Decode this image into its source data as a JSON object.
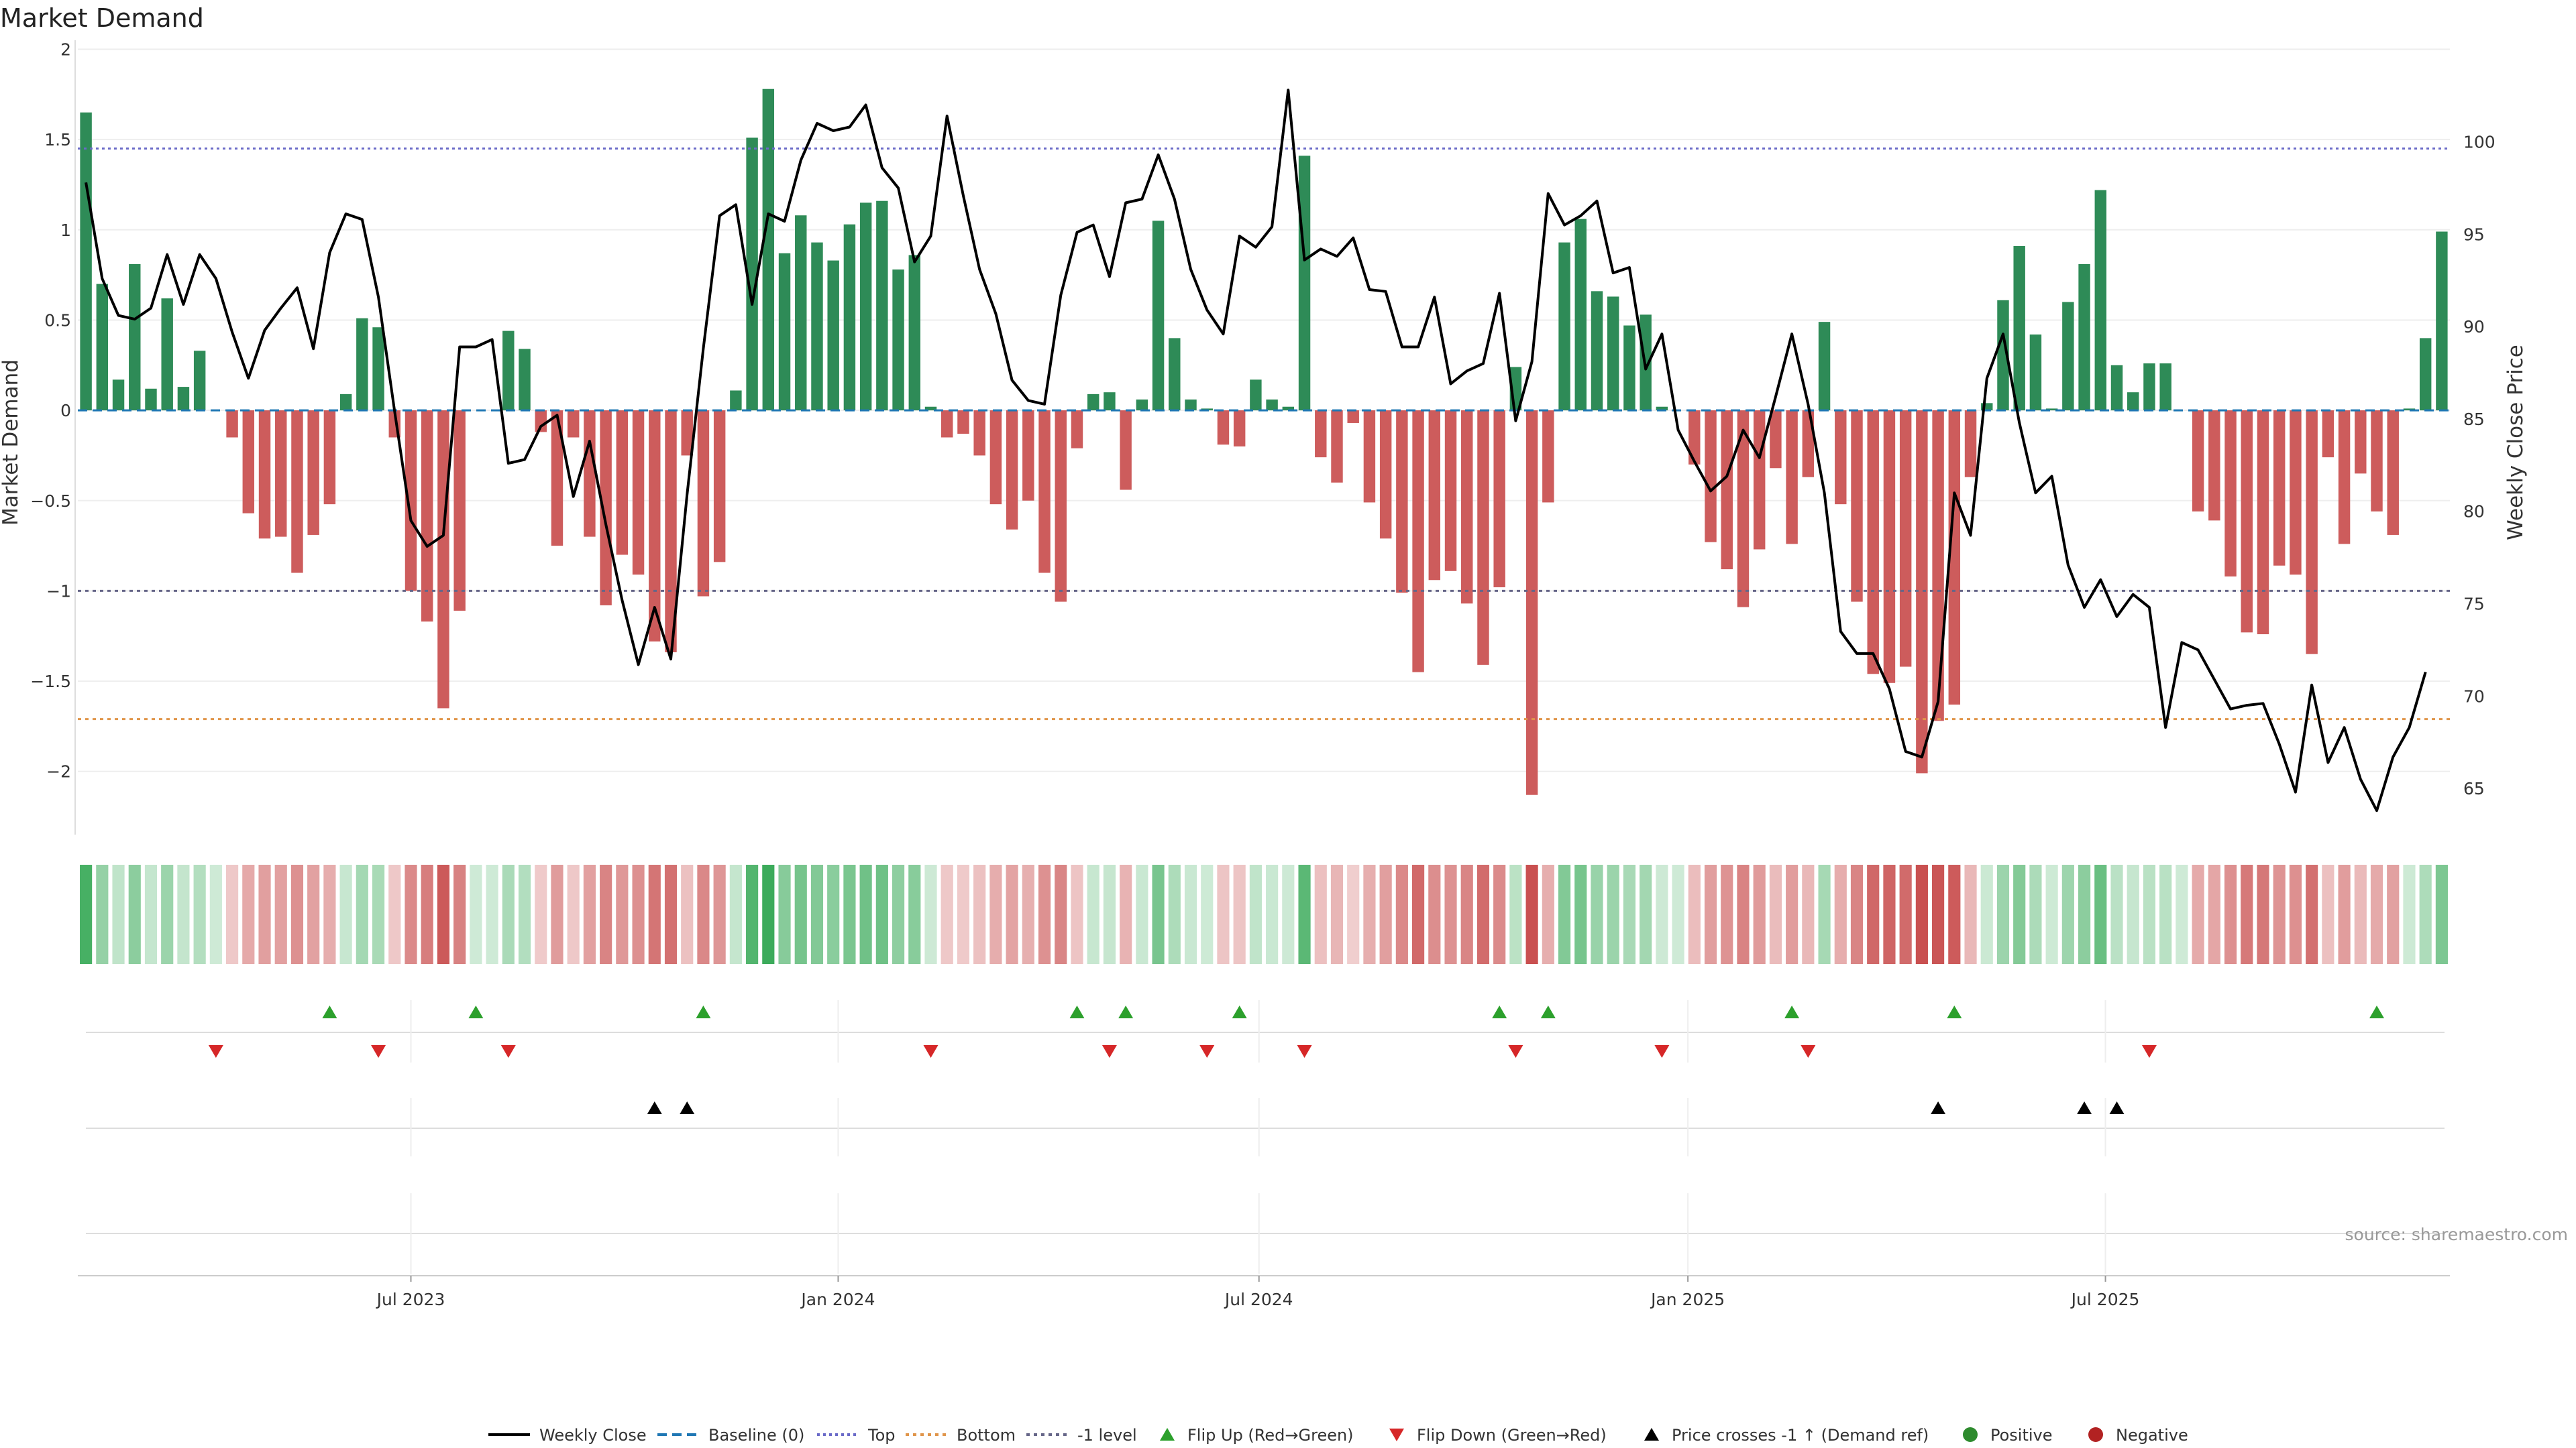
{
  "chart_data": {
    "type": "bar",
    "title": "Market Demand",
    "ylabel": "Market Demand",
    "y2label": "Weekly Close Price",
    "ylim": [
      -2.35,
      2.05
    ],
    "y2lim": [
      62.5,
      105.5
    ],
    "yticks": [
      2,
      1.5,
      1,
      0.5,
      0,
      -0.5,
      -1,
      -1.5,
      -2
    ],
    "ytick_labels": [
      "2",
      "1.5",
      "1",
      "0.5",
      "0",
      "−0.5",
      "−1",
      "−1.5",
      "−2"
    ],
    "y2ticks": [
      100,
      95,
      90,
      85,
      80,
      75,
      70,
      65
    ],
    "xticks": [
      {
        "week": 20.5,
        "label": "Jul 2023"
      },
      {
        "week": 46.8,
        "label": "Jan 2024"
      },
      {
        "week": 72.7,
        "label": "Jul 2024"
      },
      {
        "week": 99.1,
        "label": "Jan 2025"
      },
      {
        "week": 124.8,
        "label": "Jul 2025"
      }
    ],
    "levels": {
      "top": 1.45,
      "bottom": -1.71,
      "minus_one": -1.0,
      "baseline": 0
    },
    "colors": {
      "positive": "#2e8b57",
      "negative": "#cd5c5c",
      "top_line": "#6a6ac8",
      "bottom_line": "#e0954a",
      "minus_one_line": "#666688",
      "baseline": "#1f77b4",
      "up_marker": "#2ca02c",
      "down_marker": "#d62728",
      "cross_marker": "#000000"
    },
    "demand": [
      1.65,
      0.7,
      0.17,
      0.81,
      0.12,
      0.62,
      0.13,
      0.33,
      0,
      -0.15,
      -0.57,
      -0.71,
      -0.7,
      -0.9,
      -0.69,
      -0.52,
      0.09,
      0.51,
      0.46,
      -0.15,
      -1.0,
      -1.17,
      -1.65,
      -1.11,
      0,
      0,
      0.44,
      0.34,
      -0.12,
      -0.75,
      -0.15,
      -0.7,
      -1.08,
      -0.8,
      -0.91,
      -1.28,
      -1.34,
      -0.25,
      -1.03,
      -0.84,
      0.11,
      1.51,
      1.78,
      0.87,
      1.08,
      0.93,
      0.83,
      1.03,
      1.15,
      1.16,
      0.78,
      0.86,
      0.02,
      -0.15,
      -0.13,
      -0.25,
      -0.52,
      -0.66,
      -0.5,
      -0.9,
      -1.06,
      -0.21,
      0.09,
      0.1,
      -0.44,
      0.06,
      1.05,
      0.4,
      0.06,
      0.01,
      -0.19,
      -0.2,
      0.17,
      0.06,
      0.02,
      1.41,
      -0.26,
      -0.4,
      -0.07,
      -0.51,
      -0.71,
      -1.01,
      -1.45,
      -0.94,
      -0.89,
      -1.07,
      -1.41,
      -0.98,
      0.24,
      -2.13,
      -0.51,
      0.93,
      1.06,
      0.66,
      0.63,
      0.47,
      0.53,
      0.02,
      0,
      -0.3,
      -0.73,
      -0.88,
      -1.09,
      -0.77,
      -0.32,
      -0.74,
      -0.37,
      0.49,
      -0.52,
      -1.06,
      -1.46,
      -1.51,
      -1.42,
      -2.01,
      -1.72,
      -1.63,
      -0.37,
      0.04,
      0.61,
      0.91,
      0.42,
      0.01,
      0.6,
      0.81,
      1.22,
      0.25,
      0.1,
      0.26,
      0.26,
      0,
      -0.56,
      -0.61,
      -0.92,
      -1.23,
      -1.24,
      -0.86,
      -0.91,
      -1.35,
      -0.26,
      -0.74,
      -0.35,
      -0.56,
      -0.69,
      0.01,
      0.4,
      0.99
    ],
    "price": [
      97.8,
      92.6,
      90.6,
      90.4,
      91.0,
      93.9,
      91.2,
      93.9,
      92.6,
      89.7,
      87.2,
      89.8,
      91.0,
      92.1,
      88.8,
      94.0,
      96.1,
      95.8,
      91.6,
      85.4,
      79.5,
      78.1,
      78.7,
      88.9,
      88.9,
      89.3,
      82.6,
      82.8,
      84.6,
      85.2,
      80.8,
      83.8,
      79.3,
      75.2,
      71.7,
      74.8,
      72.0,
      80.9,
      88.8,
      96.0,
      96.6,
      91.2,
      96.1,
      95.7,
      99.0,
      101.0,
      100.6,
      100.8,
      102.0,
      98.6,
      97.5,
      93.5,
      94.9,
      101.4,
      97.1,
      93.1,
      90.7,
      87.1,
      86.0,
      85.8,
      91.7,
      95.1,
      95.5,
      92.7,
      96.7,
      96.9,
      99.3,
      96.9,
      93.1,
      90.9,
      89.6,
      94.9,
      94.3,
      95.4,
      102.8,
      93.6,
      94.2,
      93.8,
      94.8,
      92.0,
      91.9,
      88.9,
      88.9,
      91.6,
      86.9,
      87.6,
      88.0,
      91.8,
      84.9,
      88.1,
      97.2,
      95.5,
      96.0,
      96.8,
      92.9,
      93.2,
      87.7,
      89.6,
      84.4,
      82.7,
      81.1,
      81.9,
      84.4,
      82.9,
      86.2,
      89.6,
      85.8,
      81.0,
      73.5,
      72.3,
      72.3,
      70.4,
      67.0,
      66.7,
      69.7,
      81.0,
      78.7,
      87.2,
      89.6,
      84.8,
      81.0,
      81.9,
      77.1,
      74.8,
      76.3,
      74.3,
      75.5,
      74.8,
      68.3,
      72.9,
      72.5,
      70.9,
      69.3,
      69.5,
      69.6,
      67.4,
      64.8,
      70.6,
      66.4,
      68.3,
      65.5,
      63.8,
      66.7,
      68.3,
      71.3
    ],
    "flip_up_weeks": [
      15,
      24,
      38,
      61,
      64,
      71,
      87,
      90,
      105,
      115,
      141
    ],
    "flip_down_weeks": [
      8,
      18,
      26,
      52,
      63,
      69,
      75,
      88,
      97,
      106,
      127
    ],
    "cross_weeks": [
      35,
      37,
      114,
      123,
      125
    ],
    "legend": [
      "Weekly Close",
      "Baseline (0)",
      "Top",
      "Bottom",
      "-1 level",
      "Flip Up (Red→Green)",
      "Flip Down (Green→Red)",
      "Price crosses -1 ↑ (Demand ref)",
      "Positive",
      "Negative"
    ],
    "source": "source: sharemaestro.com"
  }
}
